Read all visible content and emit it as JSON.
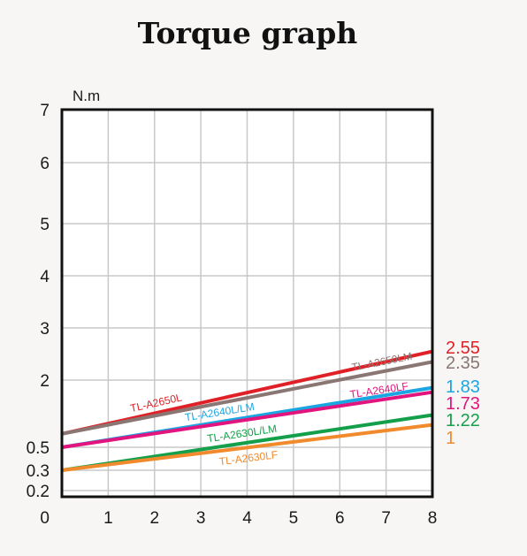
{
  "chart_data": {
    "type": "line",
    "title": "Torque graph",
    "ylabel": "N.m",
    "xlabel": "",
    "x_ticks": [
      "1",
      "2",
      "3",
      "4",
      "5",
      "6",
      "7",
      "8"
    ],
    "y_ticks": [
      "0",
      "0.2",
      "0.3",
      "0.5",
      "2",
      "3",
      "4",
      "5",
      "6",
      "7"
    ],
    "xlim": [
      0,
      8
    ],
    "ylim": [
      0,
      7
    ],
    "grid": true,
    "series": [
      {
        "name": "TL-A2650L",
        "end_label": "2.55",
        "color": "#e02027",
        "x": [
          0,
          8
        ],
        "y": [
          0.8,
          2.55
        ]
      },
      {
        "name": "TL-A2650LM",
        "end_label": "2.35",
        "color": "#8a7673",
        "x": [
          0,
          8
        ],
        "y": [
          0.8,
          2.35
        ]
      },
      {
        "name": "TL-A2640L/LM",
        "end_label": "1.83",
        "color": "#1aa6e2",
        "x": [
          0,
          8
        ],
        "y": [
          0.5,
          1.83
        ]
      },
      {
        "name": "TL-A2640LF",
        "end_label": "1.73",
        "color": "#e2147d",
        "x": [
          0,
          8
        ],
        "y": [
          0.5,
          1.73
        ]
      },
      {
        "name": "TL-A2630L/LM",
        "end_label": "1.22",
        "color": "#14a04a",
        "x": [
          0,
          8
        ],
        "y": [
          0.3,
          1.22
        ]
      },
      {
        "name": "TL-A2630LF",
        "end_label": "1",
        "color": "#f08a2c",
        "x": [
          0,
          8
        ],
        "y": [
          0.3,
          1
        ]
      }
    ]
  }
}
